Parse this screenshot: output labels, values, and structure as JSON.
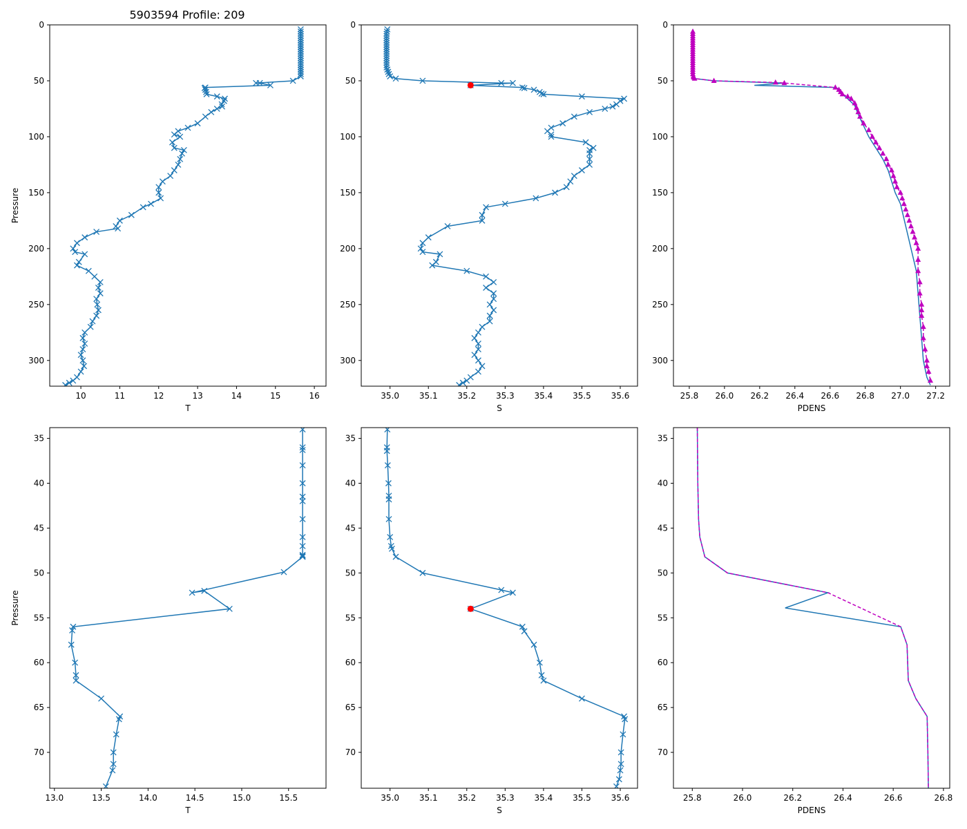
{
  "figure": {
    "title": "5903594 Profile: 209"
  },
  "chart_data": [
    {
      "id": "top-T",
      "type": "line",
      "xlabel": "T",
      "ylabel": "Pressure",
      "xlim": [
        9.2,
        16.3
      ],
      "ylim": [
        323,
        0
      ],
      "xticks": [
        10,
        11,
        12,
        13,
        14,
        15,
        16
      ],
      "yticks": [
        0,
        50,
        100,
        150,
        200,
        250,
        300
      ],
      "series": [
        {
          "name": "T",
          "color": "#1f77b4",
          "marker": "x",
          "x": [
            15.65,
            15.65,
            15.65,
            15.65,
            15.65,
            15.65,
            15.65,
            15.65,
            15.65,
            15.65,
            15.65,
            15.65,
            15.65,
            15.65,
            15.65,
            15.65,
            15.65,
            15.65,
            15.65,
            15.65,
            15.65,
            15.65,
            15.45,
            14.5,
            14.6,
            14.87,
            13.2,
            13.18,
            13.2,
            13.22,
            13.23,
            13.5,
            13.7,
            13.68,
            13.62,
            13.63,
            13.5,
            13.35,
            13.2,
            13.0,
            12.75,
            12.5,
            12.4,
            12.55,
            12.35,
            12.4,
            12.65,
            12.6,
            12.55,
            12.5,
            12.4,
            12.3,
            12.1,
            12.0,
            12.0,
            12.05,
            11.8,
            11.6,
            11.3,
            11.0,
            10.9,
            10.95,
            10.4,
            10.1,
            9.9,
            9.8,
            9.85,
            10.1,
            9.95,
            9.9,
            10.2,
            10.35,
            10.5,
            10.45,
            10.5,
            10.4,
            10.42,
            10.45,
            10.4,
            10.3,
            10.25,
            10.1,
            10.05,
            10.1,
            10.05,
            10.0,
            10.05,
            10.08,
            10.0,
            9.9,
            9.8,
            9.7,
            9.6
          ],
          "y": [
            4,
            6,
            8,
            10,
            12,
            14,
            16,
            18,
            20,
            22,
            24,
            26,
            28,
            30,
            32,
            34,
            36,
            38,
            40,
            42,
            44,
            46,
            50,
            52,
            52,
            54,
            56,
            56.5,
            58,
            60,
            62,
            64,
            66,
            68,
            71,
            73,
            75,
            78,
            82,
            88,
            92,
            95,
            98,
            100,
            105,
            110,
            112,
            115,
            120,
            125,
            130,
            135,
            140,
            145,
            150,
            155,
            160,
            163,
            170,
            175,
            180,
            182,
            185,
            190,
            195,
            200,
            203,
            205,
            212,
            215,
            220,
            225,
            230,
            235,
            240,
            245,
            250,
            255,
            260,
            265,
            270,
            275,
            280,
            285,
            290,
            295,
            300,
            305,
            310,
            315,
            318,
            320,
            322
          ]
        }
      ]
    },
    {
      "id": "top-S",
      "type": "line",
      "xlabel": "S",
      "ylabel": "",
      "xlim": [
        34.925,
        35.645
      ],
      "ylim": [
        323,
        0
      ],
      "xticks": [
        35.0,
        35.1,
        35.2,
        35.3,
        35.4,
        35.5,
        35.6
      ],
      "yticks": [
        0,
        50,
        100,
        150,
        200,
        250,
        300
      ],
      "series": [
        {
          "name": "S",
          "color": "#1f77b4",
          "marker": "x",
          "x": [
            34.993,
            34.992,
            34.991,
            34.991,
            34.991,
            34.991,
            34.991,
            34.991,
            34.991,
            34.991,
            34.991,
            34.991,
            34.991,
            34.991,
            34.991,
            34.991,
            34.991,
            34.991,
            34.993,
            34.995,
            34.997,
            35.0,
            35.015,
            35.085,
            35.29,
            35.32,
            35.21,
            35.345,
            35.35,
            35.375,
            35.39,
            35.395,
            35.4,
            35.5,
            35.61,
            35.6,
            35.59,
            35.58,
            35.56,
            35.52,
            35.48,
            35.45,
            35.42,
            35.41,
            35.42,
            35.42,
            35.51,
            35.53,
            35.52,
            35.52,
            35.52,
            35.52,
            35.5,
            35.48,
            35.47,
            35.46,
            35.43,
            35.38,
            35.3,
            35.25,
            35.24,
            35.24,
            35.15,
            35.1,
            35.085,
            35.08,
            35.085,
            35.13,
            35.12,
            35.11,
            35.2,
            35.25,
            35.27,
            35.25,
            35.27,
            35.27,
            35.26,
            35.27,
            35.26,
            35.26,
            35.24,
            35.23,
            35.22,
            35.23,
            35.23,
            35.22,
            35.23,
            35.24,
            35.23,
            35.21,
            35.2,
            35.19,
            35.18
          ],
          "y": [
            4,
            6,
            8,
            10,
            12,
            14,
            16,
            18,
            20,
            22,
            24,
            26,
            28,
            30,
            32,
            34,
            36,
            38,
            40,
            42,
            44,
            46,
            48,
            50,
            52,
            52,
            54,
            56,
            56.5,
            58,
            60,
            61.5,
            62,
            64,
            66,
            68,
            71,
            73,
            75,
            78,
            82,
            88,
            92,
            95,
            98,
            100,
            105,
            110,
            112,
            115,
            120,
            125,
            130,
            135,
            140,
            145,
            150,
            155,
            160,
            163,
            170,
            175,
            180,
            190,
            195,
            200,
            203,
            205,
            212,
            215,
            220,
            225,
            230,
            235,
            240,
            245,
            250,
            255,
            260,
            265,
            270,
            275,
            280,
            285,
            290,
            295,
            300,
            305,
            310,
            315,
            318,
            320,
            322
          ]
        }
      ],
      "highlight": {
        "label": "red point",
        "color": "#ff0000",
        "x": 35.21,
        "y": 54
      }
    },
    {
      "id": "top-PDENS",
      "type": "line",
      "xlabel": "PDENS",
      "ylabel": "",
      "xlim": [
        25.71,
        27.28
      ],
      "ylim": [
        323,
        0
      ],
      "xticks": [
        25.8,
        26.0,
        26.2,
        26.4,
        26.6,
        26.8,
        27.0,
        27.2
      ],
      "yticks": [
        0,
        50,
        100,
        150,
        200,
        250,
        300
      ],
      "series": [
        {
          "name": "PDENS",
          "color": "#1f77b4",
          "marker": "none",
          "x": [
            25.82,
            25.82,
            25.825,
            25.83,
            25.94,
            26.34,
            26.17,
            26.63,
            26.66,
            26.67,
            26.7,
            26.74,
            26.76,
            26.79,
            26.82,
            26.86,
            26.9,
            26.93,
            26.95,
            26.97,
            27.0,
            27.03,
            27.06,
            27.09,
            27.1,
            27.11,
            27.12,
            27.13,
            27.15,
            27.17
          ],
          "y": [
            4,
            20,
            40,
            48,
            50,
            52,
            54,
            56,
            58,
            62,
            66,
            72,
            80,
            90,
            100,
            110,
            120,
            130,
            140,
            150,
            160,
            180,
            200,
            220,
            240,
            260,
            280,
            300,
            315,
            322
          ]
        },
        {
          "name": "PDENS (triangle markers)",
          "color": "#bf00bf",
          "marker": "triangle",
          "x": [
            25.82,
            25.82,
            25.82,
            25.82,
            25.82,
            25.82,
            25.82,
            25.82,
            25.82,
            25.82,
            25.82,
            25.82,
            25.82,
            25.82,
            25.82,
            25.82,
            25.82,
            25.82,
            25.82,
            25.82,
            25.823,
            25.825,
            25.83,
            25.94,
            26.29,
            26.34,
            26.63,
            26.65,
            26.66,
            26.67,
            26.7,
            26.72,
            26.74,
            26.75,
            26.76,
            26.77,
            26.79,
            26.82,
            26.84,
            26.86,
            26.88,
            26.9,
            26.92,
            26.93,
            26.95,
            26.96,
            26.97,
            26.98,
            27.0,
            27.01,
            27.02,
            27.03,
            27.04,
            27.05,
            27.06,
            27.07,
            27.08,
            27.09,
            27.1,
            27.1,
            27.1,
            27.11,
            27.11,
            27.12,
            27.12,
            27.12,
            27.13,
            27.13,
            27.14,
            27.15,
            27.15,
            27.16,
            27.17
          ],
          "y": [
            6,
            8,
            10,
            12,
            14,
            16,
            18,
            20,
            22,
            24,
            26,
            28,
            30,
            32,
            34,
            36,
            38,
            40,
            42,
            44,
            46,
            47,
            48,
            50,
            51.5,
            52,
            56,
            58,
            60,
            62,
            64,
            66,
            70,
            74,
            78,
            82,
            88,
            94,
            100,
            105,
            110,
            115,
            120,
            125,
            130,
            135,
            140,
            145,
            150,
            155,
            160,
            165,
            170,
            175,
            180,
            185,
            190,
            195,
            200,
            210,
            220,
            230,
            240,
            250,
            255,
            260,
            270,
            280,
            290,
            300,
            305,
            310,
            318
          ]
        }
      ]
    },
    {
      "id": "bottom-T",
      "type": "line",
      "xlabel": "T",
      "ylabel": "Pressure",
      "xlim": [
        12.95,
        15.9
      ],
      "ylim": [
        74.0,
        33.8
      ],
      "xticks": [
        13.0,
        13.5,
        14.0,
        14.5,
        15.0,
        15.5
      ],
      "yticks": [
        35,
        40,
        45,
        50,
        55,
        60,
        65,
        70
      ],
      "series": [
        {
          "name": "T",
          "color": "#1f77b4",
          "marker": "x",
          "x": [
            15.65,
            15.65,
            15.65,
            15.65,
            15.65,
            15.65,
            15.65,
            15.65,
            15.65,
            15.65,
            15.65,
            15.65,
            15.65,
            15.45,
            14.47,
            14.6,
            14.87,
            13.2,
            13.19,
            13.18,
            13.22,
            13.23,
            13.23,
            13.5,
            13.7,
            13.69,
            13.66,
            13.63,
            13.63,
            13.62,
            13.55
          ],
          "y": [
            34,
            36,
            36.3,
            38,
            40,
            41.5,
            42,
            44,
            46,
            47,
            48,
            48.1,
            48.2,
            49.9,
            52.2,
            52,
            54,
            56,
            56.4,
            58,
            60,
            61.4,
            62,
            64,
            66,
            66.3,
            68,
            70,
            71.3,
            72,
            73.8
          ]
        }
      ]
    },
    {
      "id": "bottom-S",
      "type": "line",
      "xlabel": "S",
      "ylabel": "",
      "xlim": [
        34.925,
        35.645
      ],
      "ylim": [
        74.0,
        33.8
      ],
      "xticks": [
        35.0,
        35.1,
        35.2,
        35.3,
        35.4,
        35.5,
        35.6
      ],
      "yticks": [
        35,
        40,
        45,
        50,
        55,
        60,
        65,
        70
      ],
      "series": [
        {
          "name": "S",
          "color": "#1f77b4",
          "marker": "x",
          "x": [
            34.993,
            34.992,
            34.992,
            34.994,
            34.996,
            34.997,
            34.997,
            34.997,
            35.0,
            35.003,
            35.005,
            35.015,
            35.085,
            35.29,
            35.32,
            35.21,
            35.345,
            35.35,
            35.375,
            35.39,
            35.395,
            35.4,
            35.5,
            35.61,
            35.612,
            35.607,
            35.602,
            35.602,
            35.6,
            35.597,
            35.59
          ],
          "y": [
            34,
            36,
            36.4,
            38,
            40,
            41.4,
            41.8,
            44,
            46,
            47,
            47.3,
            48.2,
            50,
            51.9,
            52.2,
            54,
            56,
            56.5,
            58,
            60,
            61.4,
            62,
            64,
            66,
            66.3,
            68,
            70,
            71.3,
            72,
            73,
            73.8
          ]
        }
      ],
      "highlight": {
        "label": "red point",
        "color": "#ff0000",
        "x": 35.21,
        "y": 54
      }
    },
    {
      "id": "bottom-PDENS",
      "type": "line",
      "xlabel": "PDENS",
      "ylabel": "",
      "xlim": [
        25.725,
        26.825
      ],
      "ylim": [
        74.0,
        33.8
      ],
      "xticks": [
        25.8,
        26.0,
        26.2,
        26.4,
        26.6,
        26.8
      ],
      "yticks": [
        35,
        40,
        45,
        50,
        55,
        60,
        65,
        70
      ],
      "series": [
        {
          "name": "PDENS",
          "color": "#1f77b4",
          "marker": "none",
          "x": [
            25.82,
            25.822,
            25.825,
            25.83,
            25.85,
            25.94,
            26.34,
            26.17,
            26.63,
            26.655,
            26.66,
            26.69,
            26.735,
            26.738,
            26.74
          ],
          "y": [
            33.8,
            40,
            44,
            46,
            48.2,
            50,
            52.2,
            53.9,
            56,
            58,
            62,
            64,
            66,
            70,
            74
          ]
        },
        {
          "name": "PDENS (dashed overlay)",
          "color": "#bf00bf",
          "marker": "dashed",
          "x": [
            25.82,
            25.822,
            25.825,
            25.83,
            25.85,
            25.94,
            26.34,
            26.63,
            26.655,
            26.66,
            26.69,
            26.735,
            26.738,
            26.74
          ],
          "y": [
            33.8,
            40,
            44,
            46,
            48.2,
            50,
            52.2,
            56,
            58,
            62,
            64,
            66,
            70,
            74
          ]
        }
      ]
    }
  ]
}
